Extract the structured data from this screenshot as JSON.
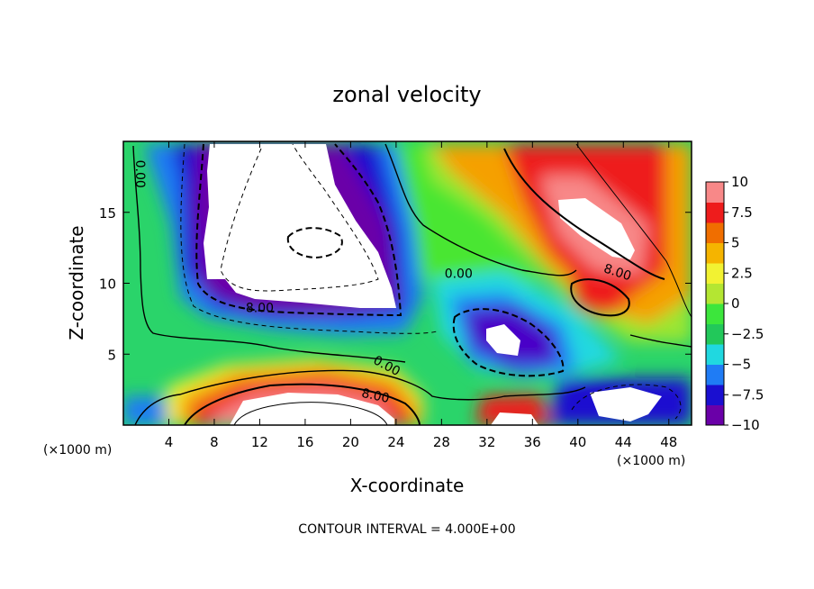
{
  "chart_data": {
    "type": "heatmap",
    "title": "zonal velocity",
    "xlabel": "X-coordinate",
    "ylabel": "Z-coordinate",
    "x_unit": "(×1000 m)",
    "z_unit": "(×1000 m)",
    "xlim": [
      0,
      50
    ],
    "ylim": [
      0,
      20
    ],
    "x_ticks": [
      4,
      8,
      12,
      16,
      20,
      24,
      28,
      32,
      36,
      40,
      44,
      48
    ],
    "y_ticks": [
      5,
      10,
      15
    ],
    "colorbar": {
      "ticks": [
        10,
        7.5,
        5,
        2.5,
        0,
        -2.5,
        -5,
        -7.5,
        -10
      ],
      "tick_labels": [
        "10",
        "7.5",
        "5",
        "2.5",
        "0",
        "−2.5",
        "−5",
        "−7.5",
        "−10"
      ],
      "range": [
        -10,
        10
      ],
      "colors": [
        "#6a00a8",
        "#1a0fd0",
        "#1f7cf5",
        "#20d8e0",
        "#22c85a",
        "#3ce63c",
        "#b4e632",
        "#f2f232",
        "#f5b400",
        "#f06e00",
        "#ee1c1c",
        "#f88888"
      ]
    },
    "contour_labels": [
      {
        "text": "0.00",
        "x": 1.5,
        "z": 17.7
      },
      {
        "text": "-8.00",
        "x": 11.8,
        "z": 8.3
      },
      {
        "text": "0.00",
        "x": 29.5,
        "z": 10.7
      },
      {
        "text": "8.00",
        "x": 43.5,
        "z": 10.8
      },
      {
        "text": "0.00",
        "x": 23.2,
        "z": 4.2
      },
      {
        "text": "8.00",
        "x": 22.2,
        "z": 2.1
      }
    ],
    "contour_interval_text": "CONTOUR INTERVAL = 4.000E+00"
  }
}
